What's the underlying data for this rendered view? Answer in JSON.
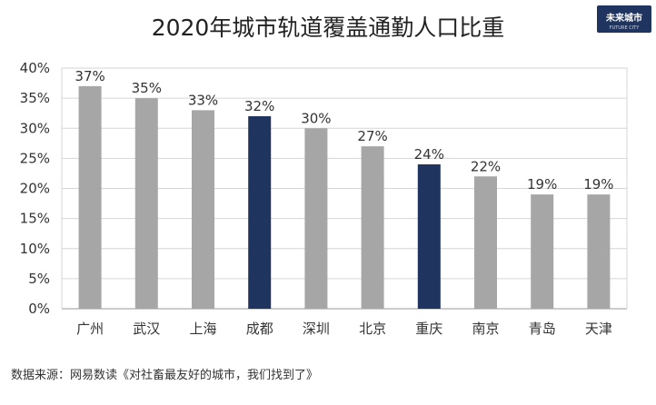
{
  "chart_data": {
    "type": "bar",
    "title": "2020年城市轨道覆盖通勤人口比重",
    "categories": [
      "广州",
      "武汉",
      "上海",
      "成都",
      "深圳",
      "北京",
      "重庆",
      "南京",
      "青岛",
      "天津"
    ],
    "values": [
      37,
      35,
      33,
      32,
      30,
      27,
      24,
      22,
      19,
      19
    ],
    "data_labels": [
      "37%",
      "35%",
      "33%",
      "32%",
      "30%",
      "27%",
      "24%",
      "22%",
      "19%",
      "19%"
    ],
    "ylim": [
      0,
      40
    ],
    "yticks": [
      "0%",
      "5%",
      "10%",
      "15%",
      "20%",
      "25%",
      "30%",
      "35%",
      "40%"
    ],
    "xlabel": "",
    "ylabel": "",
    "grid": true,
    "legend": "none",
    "bar_colors": {
      "default": "#a6a6a6",
      "highlight": "#1f3560"
    },
    "highlighted_categories": [
      "成都",
      "重庆"
    ]
  },
  "source_note": "数据来源：网易数读《对社畜最友好的城市，我们找到了》",
  "logo": {
    "text": "未来城市",
    "subtext": "FUTURE CITY"
  }
}
